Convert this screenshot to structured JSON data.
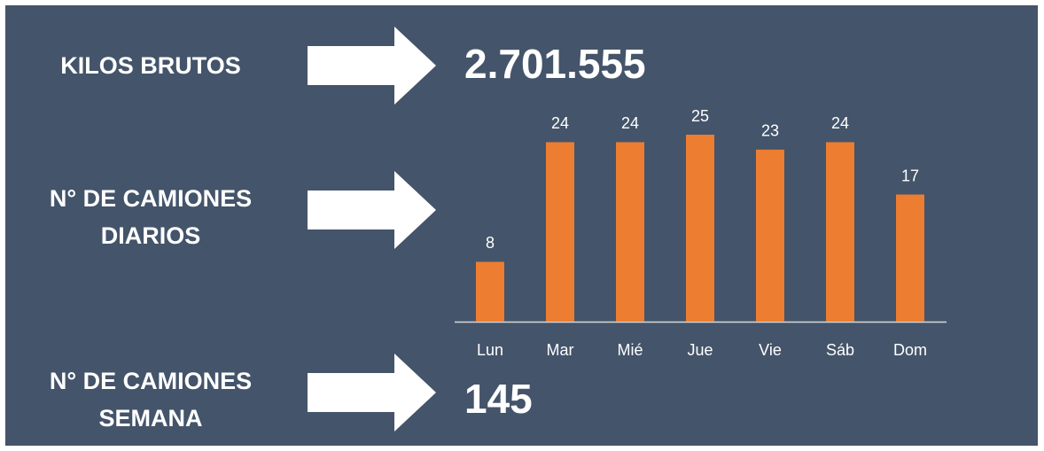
{
  "kpis": [
    {
      "label_lines": [
        "KILOS BRUTOS"
      ],
      "value": "2.701.555"
    },
    {
      "label_lines": [
        "N° DE CAMIONES",
        "DIARIOS"
      ]
    },
    {
      "label_lines": [
        "N° DE CAMIONES",
        "SEMANA"
      ],
      "value": "145"
    }
  ],
  "chart_data": {
    "type": "bar",
    "categories": [
      "Lun",
      "Mar",
      "Mié",
      "Jue",
      "Vie",
      "Sáb",
      "Dom"
    ],
    "values": [
      8,
      24,
      24,
      25,
      23,
      24,
      17
    ],
    "color": "#ed7d31"
  }
}
